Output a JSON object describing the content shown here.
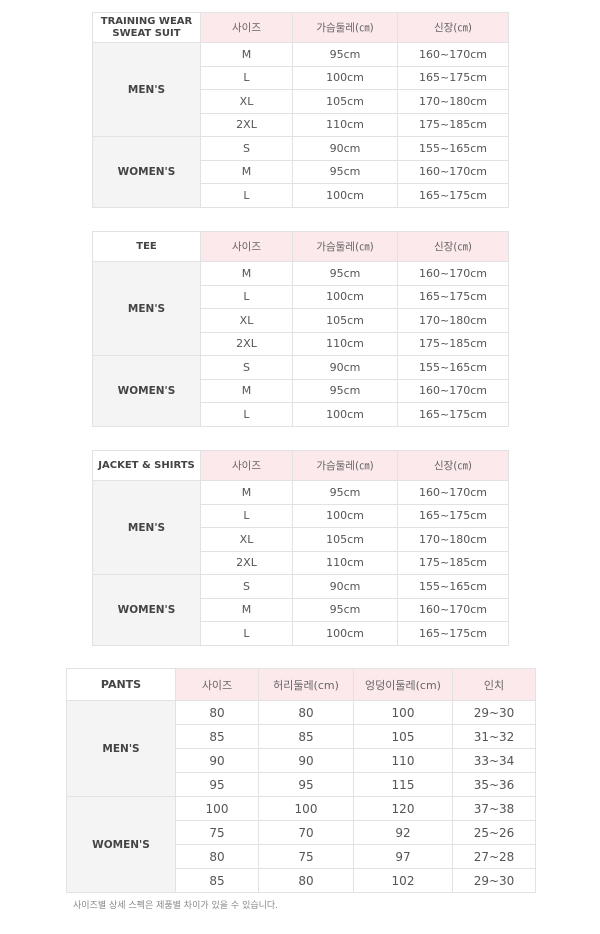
{
  "tables": [
    {
      "category": "TRAINING WEAR\nSWEAT SUIT",
      "headers": [
        "사이즈",
        "가슴둘레(㎝)",
        "신장(㎝)"
      ],
      "groups": [
        {
          "label": "MEN'S",
          "rows": [
            [
              "M",
              "95cm",
              "160~170cm"
            ],
            [
              "L",
              "100cm",
              "165~175cm"
            ],
            [
              "XL",
              "105cm",
              "170~180cm"
            ],
            [
              "2XL",
              "110cm",
              "175~185cm"
            ]
          ]
        },
        {
          "label": "WOMEN'S",
          "rows": [
            [
              "S",
              "90cm",
              "155~165cm"
            ],
            [
              "M",
              "95cm",
              "160~170cm"
            ],
            [
              "L",
              "100cm",
              "165~175cm"
            ]
          ]
        }
      ]
    },
    {
      "category": "TEE",
      "headers": [
        "사이즈",
        "가슴둘레(㎝)",
        "신장(㎝)"
      ],
      "groups": [
        {
          "label": "MEN'S",
          "rows": [
            [
              "M",
              "95cm",
              "160~170cm"
            ],
            [
              "L",
              "100cm",
              "165~175cm"
            ],
            [
              "XL",
              "105cm",
              "170~180cm"
            ],
            [
              "2XL",
              "110cm",
              "175~185cm"
            ]
          ]
        },
        {
          "label": "WOMEN'S",
          "rows": [
            [
              "S",
              "90cm",
              "155~165cm"
            ],
            [
              "M",
              "95cm",
              "160~170cm"
            ],
            [
              "L",
              "100cm",
              "165~175cm"
            ]
          ]
        }
      ]
    },
    {
      "category": "JACKET & SHIRTS",
      "headers": [
        "사이즈",
        "가슴둘레(㎝)",
        "신장(㎝)"
      ],
      "groups": [
        {
          "label": "MEN'S",
          "rows": [
            [
              "M",
              "95cm",
              "160~170cm"
            ],
            [
              "L",
              "100cm",
              "165~175cm"
            ],
            [
              "XL",
              "105cm",
              "170~180cm"
            ],
            [
              "2XL",
              "110cm",
              "175~185cm"
            ]
          ]
        },
        {
          "label": "WOMEN'S",
          "rows": [
            [
              "S",
              "90cm",
              "155~165cm"
            ],
            [
              "M",
              "95cm",
              "160~170cm"
            ],
            [
              "L",
              "100cm",
              "165~175cm"
            ]
          ]
        }
      ]
    },
    {
      "category": "PANTS",
      "headers": [
        "사이즈",
        "허리둘레(cm)",
        "엉덩이둘레(cm)",
        "인치"
      ],
      "groups": [
        {
          "label": "MEN'S",
          "rows": [
            [
              "80",
              "80",
              "100",
              "29~30"
            ],
            [
              "85",
              "85",
              "105",
              "31~32"
            ],
            [
              "90",
              "90",
              "110",
              "33~34"
            ],
            [
              "95",
              "95",
              "115",
              "35~36"
            ]
          ]
        },
        {
          "label": "WOMEN'S",
          "rows": [
            [
              "100",
              "100",
              "120",
              "37~38"
            ],
            [
              "75",
              "70",
              "92",
              "25~26"
            ],
            [
              "80",
              "75",
              "97",
              "27~28"
            ],
            [
              "85",
              "80",
              "102",
              "29~30"
            ]
          ]
        }
      ]
    }
  ],
  "note": "사이즈별 상세 스펙은 제품별 차이가 있을 수 있습니다.",
  "colors": {
    "header_bg": "#fce9eb",
    "group_bg": "#f4f4f4",
    "border": "#e2e2e2"
  }
}
